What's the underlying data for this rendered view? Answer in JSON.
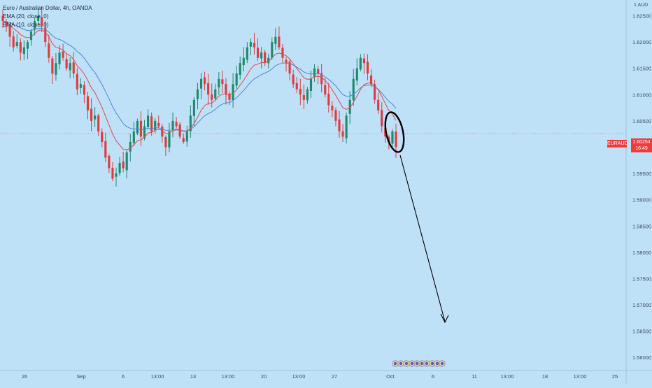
{
  "legend": {
    "title": "Euro / Australian Dollar, 4h, OANDA",
    "ema20": "EMA (20, close, 0)",
    "ema10": "EMA (10, close, 0)"
  },
  "currency": "1 AUD",
  "symbol": "EURAUD",
  "last_price": "1.60254",
  "countdown": "16:49",
  "colors": {
    "background": "#bfe1f8",
    "up": "#1e8a6c",
    "down": "#e03b3b",
    "ema20": "#4a86d6",
    "ema10": "#e04848",
    "annotation": "#000000"
  },
  "chart_data": {
    "type": "candlestick",
    "title": "Euro / Australian Dollar, 4h, OANDA",
    "y_ticks": [
      1.625,
      1.62,
      1.615,
      1.61,
      1.605,
      1.6,
      1.595,
      1.59,
      1.585,
      1.58,
      1.575,
      1.57,
      1.565,
      1.56
    ],
    "y_tick_labels": [
      "1.62500",
      "1.62000",
      "1.61500",
      "1.61000",
      "1.60500",
      "1.60000",
      "1.59500",
      "1.59000",
      "1.58500",
      "1.58000",
      "1.57500",
      "1.57000",
      "1.56500",
      "1.56000"
    ],
    "x_tick_labels": [
      "26",
      "Sep",
      "6",
      "13:00",
      "13",
      "13:00",
      "20",
      "13:00",
      "27",
      "Oct",
      "6",
      "11",
      "13:00",
      "18",
      "13:00",
      "25"
    ],
    "close_series": [
      1.624,
      1.623,
      1.621,
      1.619,
      1.62,
      1.618,
      1.619,
      1.62,
      1.622,
      1.624,
      1.625,
      1.623,
      1.62,
      1.617,
      1.614,
      1.616,
      1.618,
      1.617,
      1.615,
      1.616,
      1.614,
      1.611,
      1.612,
      1.61,
      1.607,
      1.605,
      1.606,
      1.603,
      1.601,
      1.598,
      1.596,
      1.594,
      1.595,
      1.597,
      1.596,
      1.599,
      1.601,
      1.603,
      1.605,
      1.602,
      1.604,
      1.606,
      1.603,
      1.605,
      1.604,
      1.602,
      1.6,
      1.603,
      1.605,
      1.604,
      1.602,
      1.601,
      1.603,
      1.606,
      1.609,
      1.611,
      1.613,
      1.612,
      1.61,
      1.609,
      1.611,
      1.613,
      1.612,
      1.61,
      1.609,
      1.612,
      1.614,
      1.616,
      1.617,
      1.619,
      1.62,
      1.619,
      1.617,
      1.618,
      1.616,
      1.617,
      1.62,
      1.621,
      1.619,
      1.617,
      1.616,
      1.614,
      1.612,
      1.611,
      1.61,
      1.609,
      1.611,
      1.613,
      1.615,
      1.614,
      1.612,
      1.61,
      1.608,
      1.607,
      1.605,
      1.603,
      1.602,
      1.606,
      1.609,
      1.613,
      1.615,
      1.617,
      1.616,
      1.614,
      1.612,
      1.609,
      1.607,
      1.604,
      1.602,
      1.601,
      1.603,
      1.6
    ],
    "ema20": [
      1.624,
      1.6239,
      1.6237,
      1.6233,
      1.6231,
      1.6227,
      1.6224,
      1.6222,
      1.6222,
      1.6224,
      1.6226,
      1.6226,
      1.6224,
      1.6219,
      1.6212,
      1.6207,
      1.6205,
      1.6202,
      1.6197,
      1.6194,
      1.6189,
      1.6182,
      1.6177,
      1.6169,
      1.616,
      1.615,
      1.6142,
      1.6131,
      1.6119,
      1.6106,
      1.6092,
      1.6077,
      1.6065,
      1.6055,
      1.6045,
      1.6039,
      1.6036,
      1.6034,
      1.6035,
      1.6033,
      1.6034,
      1.6036,
      1.6035,
      1.6037,
      1.6037,
      1.6035,
      1.6032,
      1.6032,
      1.6033,
      1.6034,
      1.6033,
      1.6031,
      1.6031,
      1.6034,
      1.6039,
      1.6046,
      1.6053,
      1.606,
      1.6064,
      1.6067,
      1.6072,
      1.6078,
      1.6082,
      1.6084,
      1.6085,
      1.6089,
      1.6094,
      1.6101,
      1.6108,
      1.6116,
      1.6124,
      1.613,
      1.6134,
      1.6138,
      1.6141,
      1.6144,
      1.6149,
      1.6155,
      1.6158,
      1.616,
      1.616,
      1.6159,
      1.6156,
      1.6152,
      1.6148,
      1.6143,
      1.614,
      1.6139,
      1.614,
      1.614,
      1.6138,
      1.6134,
      1.6129,
      1.6123,
      1.6117,
      1.6108,
      1.61,
      1.6097,
      1.6097,
      1.6101,
      1.6106,
      1.6113,
      1.6117,
      1.6118,
      1.6118,
      1.6115,
      1.611,
      1.6103,
      1.6095,
      1.6087,
      1.6082,
      1.6074
    ],
    "ema10": [
      1.624,
      1.6238,
      1.6233,
      1.6225,
      1.6221,
      1.6214,
      1.621,
      1.6208,
      1.621,
      1.6216,
      1.6222,
      1.6223,
      1.6219,
      1.621,
      1.6197,
      1.619,
      1.6188,
      1.6185,
      1.6178,
      1.6174,
      1.6167,
      1.6155,
      1.6148,
      1.6139,
      1.6127,
      1.6113,
      1.6104,
      1.609,
      1.6076,
      1.6059,
      1.6042,
      1.6025,
      1.6012,
      1.6004,
      1.5996,
      1.5995,
      1.5998,
      1.6004,
      1.6012,
      1.6014,
      1.6019,
      1.6027,
      1.6028,
      1.6032,
      1.6034,
      1.6032,
      1.6026,
      1.6027,
      1.6031,
      1.6033,
      1.6032,
      1.603,
      1.603,
      1.6036,
      1.6045,
      1.6057,
      1.607,
      1.6079,
      1.6083,
      1.6084,
      1.6089,
      1.6097,
      1.6101,
      1.6101,
      1.6099,
      1.6102,
      1.6109,
      1.6118,
      1.6127,
      1.6138,
      1.6149,
      1.6156,
      1.6158,
      1.6161,
      1.6161,
      1.6163,
      1.617,
      1.6177,
      1.6179,
      1.6177,
      1.6174,
      1.6168,
      1.6159,
      1.615,
      1.6141,
      1.6132,
      1.6129,
      1.613,
      1.6134,
      1.6135,
      1.6133,
      1.6127,
      1.6119,
      1.6109,
      1.6099,
      1.6087,
      1.6075,
      1.6072,
      1.6075,
      1.6085,
      1.6097,
      1.611,
      1.6119,
      1.6122,
      1.6122,
      1.6117,
      1.6109,
      1.6097,
      1.6083,
      1.607,
      1.6063,
      1.6051
    ],
    "last_price": 1.60254,
    "ylim": [
      1.5575,
      1.628
    ],
    "annotations": [
      {
        "type": "ellipse",
        "around": "last candles near Oct"
      },
      {
        "type": "arrow",
        "from_price": 1.602,
        "to_price": 1.5655,
        "to_label": "6"
      }
    ]
  }
}
